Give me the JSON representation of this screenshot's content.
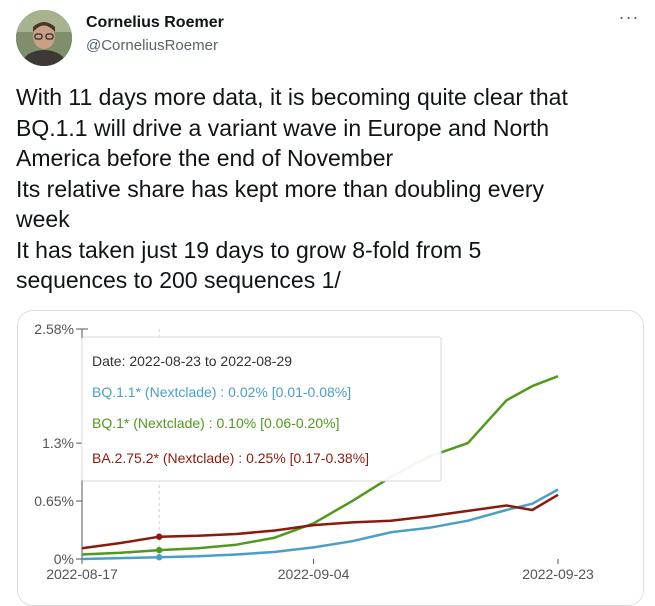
{
  "author": {
    "name": "Cornelius Roemer",
    "handle": "@CorneliusRoemer",
    "avatar_icon": "profile-photo"
  },
  "more_icon": "more-dots-icon",
  "more_glyph": "···",
  "tweet_lines": [
    "With 11 days more data, it is becoming quite clear that",
    "BQ.1.1 will drive a variant wave in Europe and North",
    "America before the end of November",
    "Its relative share has kept more than doubling every",
    "week",
    "It has taken just 19 days to grow 8-fold from 5",
    "sequences to 200 sequences 1/"
  ],
  "chart_data": {
    "type": "line",
    "x_dates": [
      "2022-08-17",
      "2022-08-20",
      "2022-08-23",
      "2022-08-26",
      "2022-08-29",
      "2022-09-01",
      "2022-09-04",
      "2022-09-07",
      "2022-09-10",
      "2022-09-13",
      "2022-09-16",
      "2022-09-19",
      "2022-09-21",
      "2022-09-23"
    ],
    "ylim": [
      0,
      2.58
    ],
    "y_ticks": [
      {
        "value": 2.58,
        "label": "2.58%"
      },
      {
        "value": 1.3,
        "label": "1.3%"
      },
      {
        "value": 0.65,
        "label": "0.65%"
      },
      {
        "value": 0,
        "label": "0%"
      }
    ],
    "x_ticks": [
      {
        "date": "2022-08-17",
        "label": "2022-08-17"
      },
      {
        "date": "2022-09-04",
        "label": "2022-09-04"
      },
      {
        "date": "2022-09-23",
        "label": "2022-09-23"
      }
    ],
    "series": [
      {
        "name": "BQ.1.1* (Nextclade)",
        "color": "#4a9fc8",
        "values": [
          0.0,
          0.01,
          0.02,
          0.03,
          0.05,
          0.08,
          0.13,
          0.2,
          0.3,
          0.35,
          0.43,
          0.55,
          0.62,
          0.78
        ]
      },
      {
        "name": "BQ.1* (Nextclade)",
        "color": "#4f9a1e",
        "values": [
          0.05,
          0.07,
          0.1,
          0.12,
          0.16,
          0.24,
          0.4,
          0.65,
          0.92,
          1.15,
          1.3,
          1.78,
          1.94,
          2.05
        ]
      },
      {
        "name": "BA.2.75.2* (Nextclade)",
        "color": "#8b1a0e",
        "values": [
          0.12,
          0.18,
          0.25,
          0.26,
          0.28,
          0.32,
          0.38,
          0.41,
          0.43,
          0.48,
          0.54,
          0.6,
          0.55,
          0.72
        ]
      }
    ],
    "grid": false,
    "hover_date": "2022-08-23",
    "tooltip": {
      "date_line": "Date: 2022-08-23 to 2022-08-29",
      "entries": [
        {
          "text": "BQ.1.1* (Nextclade) : 0.02% [0.01-0.08%]",
          "color": "#4a9fc8"
        },
        {
          "text": "BQ.1* (Nextclade) : 0.10% [0.06-0.20%]",
          "color": "#4f9a1e"
        },
        {
          "text": "BA.2.75.2* (Nextclade) : 0.25% [0.17-0.38%]",
          "color": "#8b1a0e"
        }
      ]
    }
  }
}
